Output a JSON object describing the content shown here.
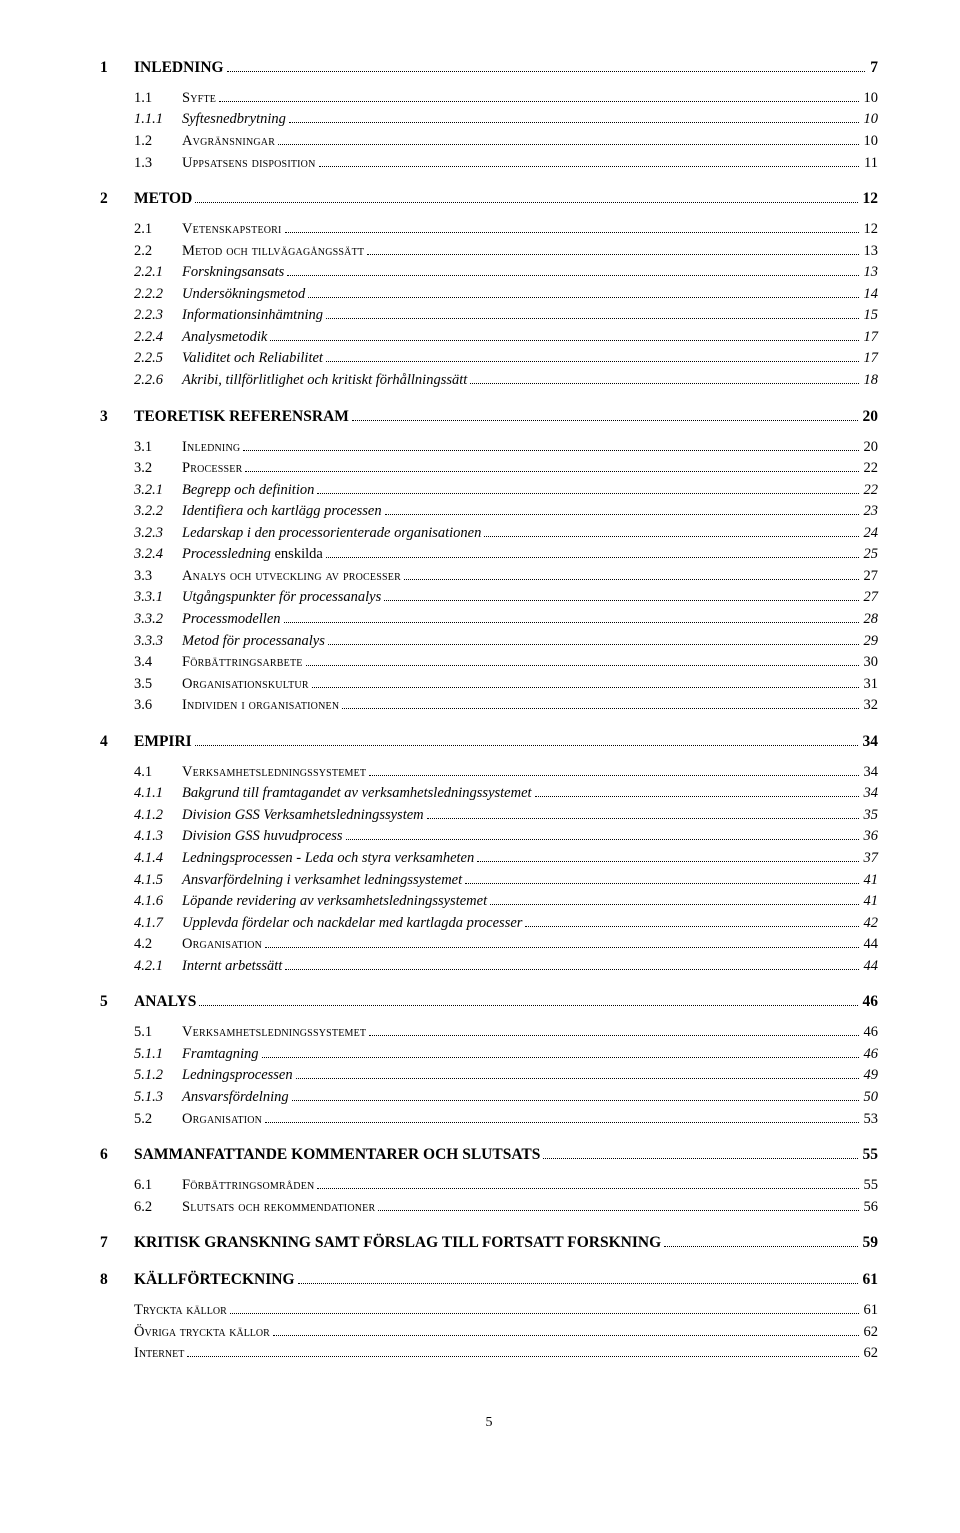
{
  "toc": [
    {
      "level": 1,
      "num": "1",
      "label": "INLEDNING",
      "page": "7"
    },
    {
      "level": 2,
      "num": "1.1",
      "label": "Syfte",
      "page": "10"
    },
    {
      "level": 3,
      "num": "1.1.1",
      "label": "Syftesnedbrytning",
      "page": "10"
    },
    {
      "level": 2,
      "num": "1.2",
      "label": "Avgränsningar",
      "page": "10"
    },
    {
      "level": 2,
      "num": "1.3",
      "label": "Uppsatsens disposition",
      "page": "11"
    },
    {
      "level": 1,
      "num": "2",
      "label": "METOD",
      "page": "12"
    },
    {
      "level": 2,
      "num": "2.1",
      "label": "Vetenskapsteori",
      "page": "12"
    },
    {
      "level": 2,
      "num": "2.2",
      "label": "Metod och tillvägagångssätt",
      "page": "13"
    },
    {
      "level": 3,
      "num": "2.2.1",
      "label": "Forskningsansats",
      "page": "13"
    },
    {
      "level": 3,
      "num": "2.2.2",
      "label": "Undersökningsmetod",
      "page": "14"
    },
    {
      "level": 3,
      "num": "2.2.3",
      "label": "Informationsinhämtning",
      "page": "15"
    },
    {
      "level": 3,
      "num": "2.2.4",
      "label": "Analysmetodik",
      "page": "17"
    },
    {
      "level": 3,
      "num": "2.2.5",
      "label": "Validitet och Reliabilitet",
      "page": "17"
    },
    {
      "level": 3,
      "num": "2.2.6",
      "label": "Akribi, tillförlitlighet och kritiskt förhållningssätt",
      "page": "18"
    },
    {
      "level": 1,
      "num": "3",
      "label": "TEORETISK REFERENSRAM",
      "page": "20"
    },
    {
      "level": 2,
      "num": "3.1",
      "label": "Inledning",
      "page": "20"
    },
    {
      "level": 2,
      "num": "3.2",
      "label": "Processer",
      "page": "22"
    },
    {
      "level": 3,
      "num": "3.2.1",
      "label": "Begrepp och definition",
      "page": "22"
    },
    {
      "level": 3,
      "num": "3.2.2",
      "label": "Identifiera och kartlägg processen",
      "page": "23"
    },
    {
      "level": 3,
      "num": "3.2.3",
      "label": "Ledarskap i den processorienterade organisationen",
      "page": "24"
    },
    {
      "level": 3,
      "num": "3.2.4",
      "label": "Processledning",
      "page": "25",
      "trailing": "enskilda"
    },
    {
      "level": 2,
      "num": "3.3",
      "label": "Analys och utveckling av processer",
      "page": "27"
    },
    {
      "level": 3,
      "num": "3.3.1",
      "label": "Utgångspunkter för processanalys",
      "page": "27"
    },
    {
      "level": 3,
      "num": "3.3.2",
      "label": "Processmodellen",
      "page": "28"
    },
    {
      "level": 3,
      "num": "3.3.3",
      "label": "Metod för processanalys",
      "page": "29"
    },
    {
      "level": 2,
      "num": "3.4",
      "label": "Förbättringsarbete",
      "page": "30"
    },
    {
      "level": 2,
      "num": "3.5",
      "label": "Organisationskultur",
      "page": "31"
    },
    {
      "level": 2,
      "num": "3.6",
      "label": "Individen i organisationen",
      "page": "32"
    },
    {
      "level": 1,
      "num": "4",
      "label": "EMPIRI",
      "page": "34"
    },
    {
      "level": 2,
      "num": "4.1",
      "label": "Verksamhetsledningssystemet",
      "page": "34"
    },
    {
      "level": 3,
      "num": "4.1.1",
      "label": "Bakgrund till framtagandet av verksamhetsledningssystemet",
      "page": "34"
    },
    {
      "level": 3,
      "num": "4.1.2",
      "label": "Division GSS Verksamhetsledningssystem",
      "page": "35"
    },
    {
      "level": 3,
      "num": "4.1.3",
      "label": "Division GSS huvudprocess",
      "page": "36"
    },
    {
      "level": 3,
      "num": "4.1.4",
      "label": "Ledningsprocessen - Leda och styra verksamheten",
      "page": "37"
    },
    {
      "level": 3,
      "num": "4.1.5",
      "label": "Ansvarfördelning i verksamhet ledningssystemet",
      "page": "41"
    },
    {
      "level": 3,
      "num": "4.1.6",
      "label": "Löpande revidering av verksamhetsledningssystemet",
      "page": "41"
    },
    {
      "level": 3,
      "num": "4.1.7",
      "label": "Upplevda fördelar och nackdelar med kartlagda processer",
      "page": "42"
    },
    {
      "level": 2,
      "num": "4.2",
      "label": "Organisation",
      "page": "44"
    },
    {
      "level": 3,
      "num": "4.2.1",
      "label": "Internt arbetssätt",
      "page": "44"
    },
    {
      "level": 1,
      "num": "5",
      "label": "ANALYS",
      "page": "46"
    },
    {
      "level": 2,
      "num": "5.1",
      "label": "Verksamhetsledningssystemet",
      "page": "46"
    },
    {
      "level": 3,
      "num": "5.1.1",
      "label": "Framtagning",
      "page": "46"
    },
    {
      "level": 3,
      "num": "5.1.2",
      "label": "Ledningsprocessen",
      "page": "49"
    },
    {
      "level": 3,
      "num": "5.1.3",
      "label": "Ansvarsfördelning",
      "page": "50"
    },
    {
      "level": 2,
      "num": "5.2",
      "label": "Organisation",
      "page": "53"
    },
    {
      "level": 1,
      "num": "6",
      "label": "SAMMANFATTANDE KOMMENTARER OCH SLUTSATS",
      "page": "55"
    },
    {
      "level": 2,
      "num": "6.1",
      "label": "Förbättringsområden",
      "page": "55"
    },
    {
      "level": 2,
      "num": "6.2",
      "label": "Slutsats och rekommendationer",
      "page": "56"
    },
    {
      "level": 1,
      "num": "7",
      "label": "KRITISK GRANSKNING SAMT FÖRSLAG TILL FORTSATT FORSKNING",
      "page": "59"
    },
    {
      "level": 1,
      "num": "8",
      "label": "KÄLLFÖRTECKNING",
      "page": "61"
    },
    {
      "level": 0,
      "num": "",
      "label": "Tryckta källor",
      "page": "61"
    },
    {
      "level": 0,
      "num": "",
      "label": "Övriga tryckta källor",
      "page": "62"
    },
    {
      "level": 0,
      "num": "",
      "label": "Internet",
      "page": "62"
    }
  ],
  "footer_page": "5"
}
